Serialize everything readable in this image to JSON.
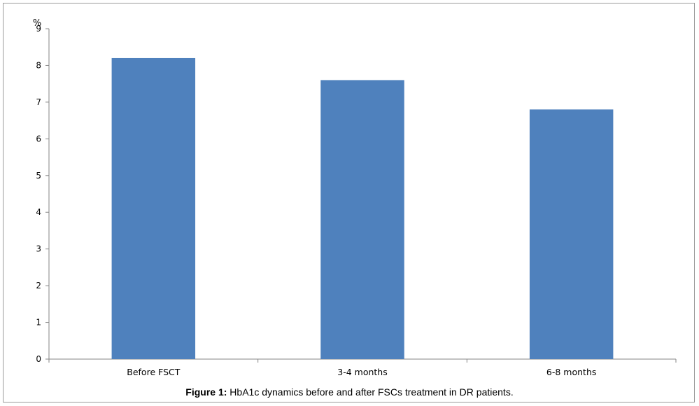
{
  "caption": {
    "label": "Figure 1:",
    "text": "HbA1c dynamics before and after FSCs treatment in DR patients."
  },
  "chart_data": {
    "type": "bar",
    "unit_label": "%",
    "categories": [
      "Before FSCT",
      "3-4 months",
      "6-8 months"
    ],
    "values": [
      8.2,
      7.6,
      6.8
    ],
    "ylim": [
      0,
      9
    ],
    "yticks": [
      0,
      1,
      2,
      3,
      4,
      5,
      6,
      7,
      8,
      9
    ],
    "grid": false,
    "legend": "none",
    "bar_color": "#4f81bd",
    "axis_color": "#868686"
  }
}
